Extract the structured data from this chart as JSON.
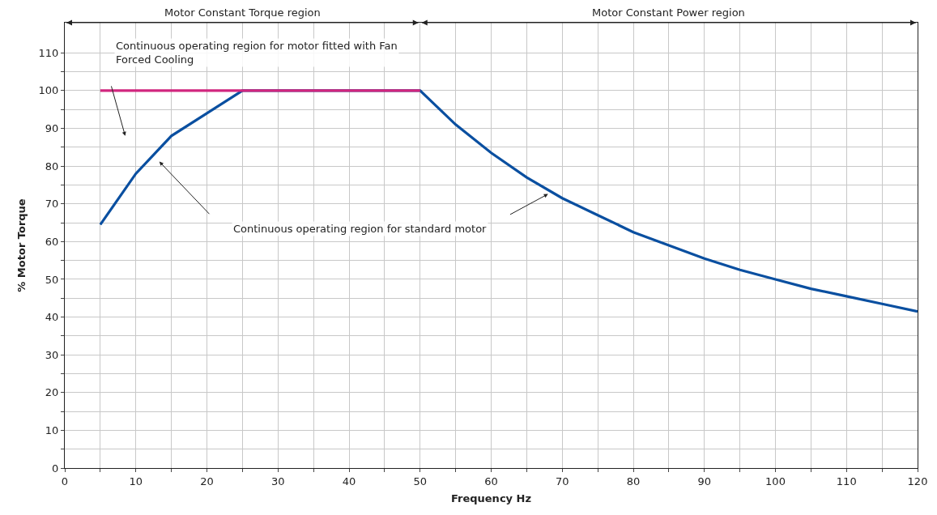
{
  "chart_data": {
    "type": "line",
    "xlabel": "Frequency Hz",
    "ylabel": "% Motor Torque",
    "xlim": [
      0,
      120
    ],
    "ylim": [
      0,
      118
    ],
    "xticks": [
      0,
      {
        "value": 5,
        "label": null
      },
      10,
      {
        "value": 15,
        "label": null
      },
      20,
      {
        "value": 25,
        "label": null
      },
      30,
      {
        "value": 35,
        "label": null
      },
      40,
      {
        "value": 45,
        "label": null
      },
      50,
      {
        "value": 55,
        "label": null
      },
      60,
      {
        "value": 65,
        "label": null
      },
      70,
      {
        "value": 75,
        "label": null
      },
      80,
      {
        "value": 85,
        "label": null
      },
      90,
      {
        "value": 95,
        "label": null
      },
      100,
      {
        "value": 105,
        "label": null
      },
      110,
      {
        "value": 115,
        "label": null
      },
      120
    ],
    "yticks": [
      0,
      {
        "value": 5,
        "label": null
      },
      10,
      {
        "value": 15,
        "label": null
      },
      20,
      {
        "value": 25,
        "label": null
      },
      30,
      {
        "value": 35,
        "label": null
      },
      40,
      {
        "value": 45,
        "label": null
      },
      50,
      {
        "value": 55,
        "label": null
      },
      60,
      {
        "value": 65,
        "label": null
      },
      70,
      {
        "value": 75,
        "label": null
      },
      80,
      {
        "value": 85,
        "label": null
      },
      90,
      {
        "value": 95,
        "label": null
      },
      100,
      {
        "value": 105,
        "label": null
      },
      110
    ],
    "series": [
      {
        "color": "#0a4fa0",
        "x": [
          5,
          10,
          15,
          20,
          25,
          50,
          55,
          60,
          65,
          70,
          75,
          80,
          85,
          90,
          95,
          100,
          105,
          110,
          115,
          120
        ],
        "values": [
          64.5,
          78,
          88,
          94,
          100,
          100,
          91,
          83.5,
          77,
          71.5,
          67,
          62.5,
          59,
          55.5,
          52.5,
          50,
          47.5,
          45.5,
          43.5,
          41.5
        ]
      },
      {
        "color": "#d1267e",
        "x": [
          5,
          50
        ],
        "values": [
          100,
          100
        ]
      }
    ],
    "annotations": [
      "Motor Constant Torque region",
      "Motor Constant Power region",
      "Continuous operating region for motor fitted with Fan Forced Cooling",
      "Continuous operating region for standard motor"
    ],
    "grid": true,
    "marker": "none",
    "line_style": "solid"
  }
}
